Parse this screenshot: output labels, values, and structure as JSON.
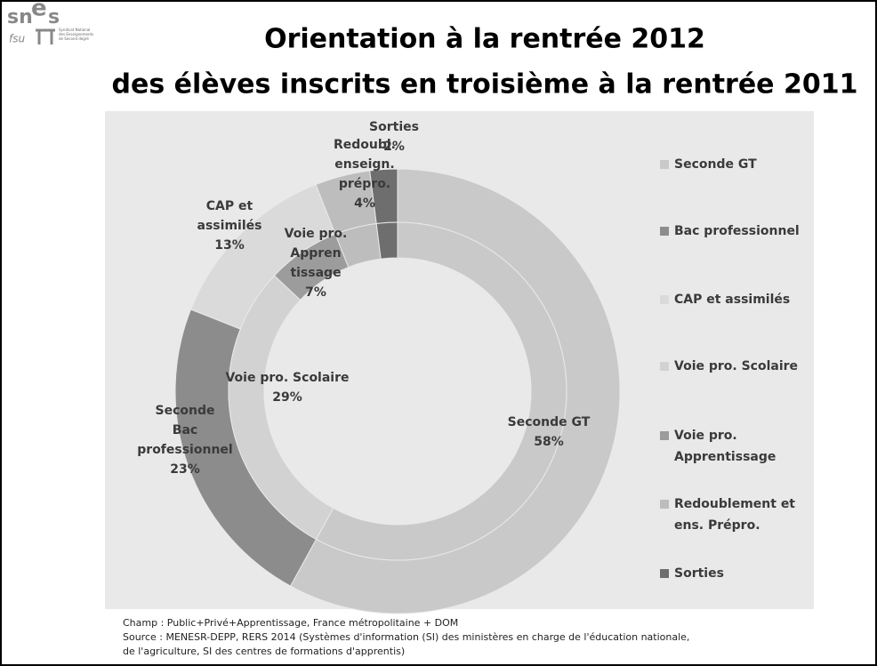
{
  "logo": {
    "mark": [
      "sn",
      "e",
      "s"
    ],
    "sub": "fsu",
    "tagline": [
      "Syndicat National",
      "des Enseignements",
      "de Second degré"
    ]
  },
  "chart_data": {
    "type": "donut",
    "title": [
      "Orientation à la rentrée 2012",
      "des élèves inscrits en troisième à la rentrée 2011"
    ],
    "legend_position": "right",
    "legend": [
      {
        "name": [
          "Seconde GT"
        ],
        "color": "#c9c9c9"
      },
      {
        "name": [
          "Bac professionnel"
        ],
        "color": "#8c8c8c"
      },
      {
        "name": [
          "CAP et assimilés"
        ],
        "color": "#dadada"
      },
      {
        "name": [
          "Voie pro. Scolaire"
        ],
        "color": "#d2d2d2"
      },
      {
        "name": [
          "Voie pro.",
          "Apprentissage"
        ],
        "color": "#9c9c9c"
      },
      {
        "name": [
          "Redoublement et",
          "ens. Prépro."
        ],
        "color": "#bdbdbd"
      },
      {
        "name": [
          "Sorties"
        ],
        "color": "#6e6e6e"
      }
    ],
    "rings": [
      {
        "legend_index": [
          0,
          1,
          2,
          5,
          6
        ],
        "values": [
          58,
          23,
          13,
          4,
          2
        ],
        "labels": [
          null,
          [
            "Seconde",
            "Bac",
            "professionnel"
          ],
          [
            "CAP et",
            "assimilés"
          ],
          [
            "Redoubl.",
            "enseign.",
            "prépro."
          ],
          [
            "Sorties"
          ]
        ],
        "value_labels": [
          null,
          "23%",
          "13%",
          "4%",
          "2%"
        ]
      },
      {
        "legend_index": [
          0,
          3,
          4,
          5,
          6
        ],
        "values": [
          58,
          29,
          7,
          4,
          2
        ],
        "labels": [
          [
            "Seconde GT"
          ],
          [
            "Voie pro. Scolaire"
          ],
          [
            "Voie pro.",
            "Appren",
            "tissage"
          ],
          null,
          null
        ],
        "value_labels": [
          "58%",
          "29%",
          "7%",
          null,
          null
        ]
      }
    ]
  },
  "notes": [
    "Champ : Public+Privé+Apprentissage, France métropolitaine + DOM",
    "Source : MENESR-DEPP, RERS 2014 (Systèmes d'information (SI) des ministères en charge de l'éducation nationale,",
    "de l'agriculture, SI des centres de formations d'apprentis)"
  ]
}
